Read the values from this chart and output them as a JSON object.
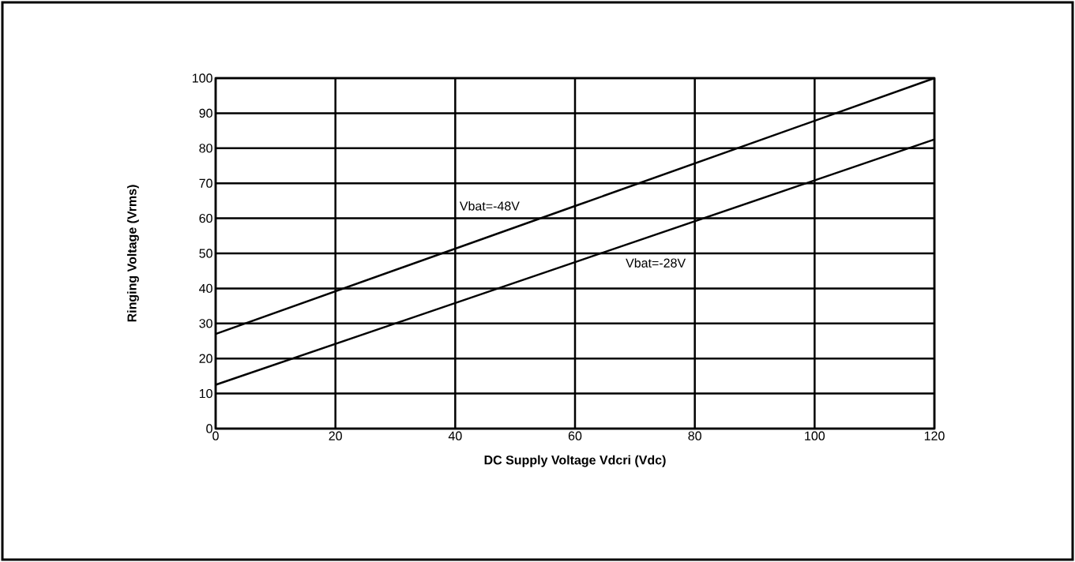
{
  "chart_data": {
    "type": "line",
    "xlabel": "DC Supply Voltage Vdcri (Vdc)",
    "ylabel": "Ringing Voltage (Vrms)",
    "series": [
      {
        "name": "Vbat=-48V",
        "x": [
          0,
          60,
          120
        ],
        "values": [
          27,
          63.5,
          100
        ],
        "color": "#000000"
      },
      {
        "name": "Vbat=-28V",
        "x": [
          0,
          60,
          120
        ],
        "values": [
          12.5,
          47.5,
          82.5
        ],
        "color": "#000000"
      }
    ],
    "xlim": [
      0,
      120
    ],
    "ylim": [
      0,
      100
    ],
    "xticks": [
      0,
      20,
      40,
      60,
      80,
      100,
      120
    ],
    "yticks": [
      0,
      10,
      20,
      30,
      40,
      50,
      60,
      70,
      80,
      90,
      100
    ],
    "grid": true,
    "marker": "none",
    "line_style": "solid"
  }
}
